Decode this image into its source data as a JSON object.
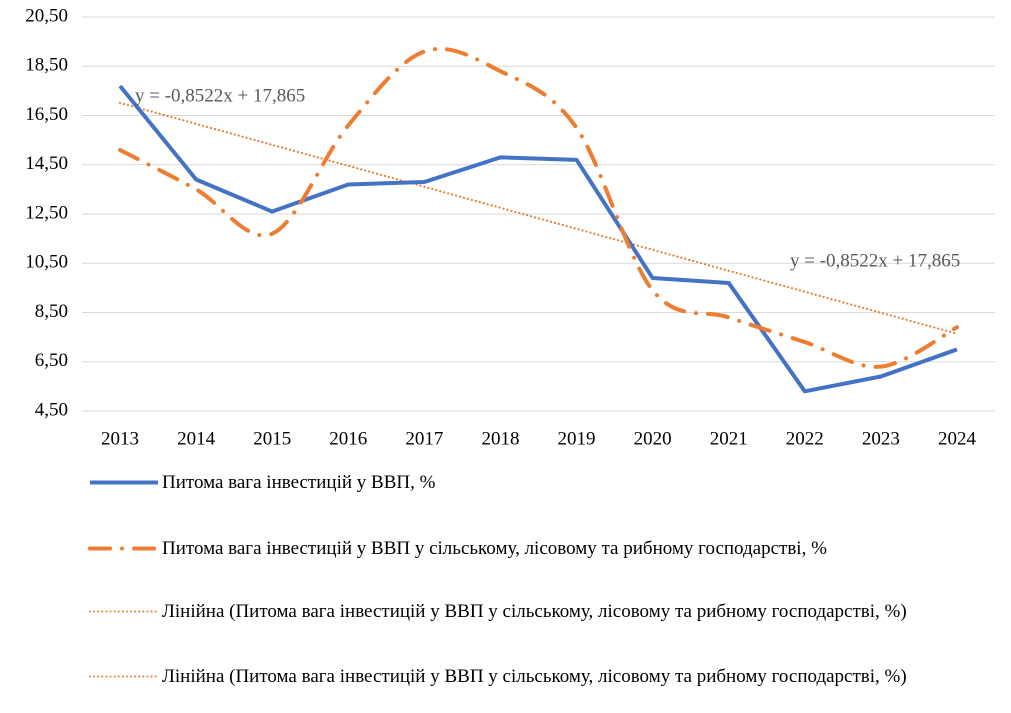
{
  "chart_data": {
    "type": "line",
    "categories": [
      "2013",
      "2014",
      "2015",
      "2016",
      "2017",
      "2018",
      "2019",
      "2020",
      "2021",
      "2022",
      "2023",
      "2024"
    ],
    "series": [
      {
        "name": "Питома вага інвестицій у ВВП, %",
        "color": "#4472c4",
        "style": "solid",
        "values": [
          17.7,
          13.9,
          12.6,
          13.7,
          13.8,
          14.8,
          14.7,
          9.9,
          9.7,
          5.3,
          5.9,
          7.0
        ]
      },
      {
        "name": "Питома вага інвестицій у ВВП у сільському, лісовому та рибному господарстві, %",
        "color": "#ed7d31",
        "style": "dash-dot",
        "smooth": true,
        "values": [
          15.1,
          13.5,
          11.7,
          16.1,
          19.1,
          18.3,
          16.0,
          9.4,
          8.3,
          7.3,
          6.3,
          7.9
        ]
      }
    ],
    "trendlines": [
      {
        "name": "Лінійна (Питома вага інвестицій у ВВП у сільському, лісовому та рибному господарстві, %)",
        "color": "#ed7d31",
        "slope": -0.8522,
        "intercept": 17.865
      },
      {
        "name": "Лінійна (Питома вага інвестицій у ВВП у сільському, лісовому та рибному господарстві, %)",
        "color": "#ed7d31",
        "slope": -0.8522,
        "intercept": 17.865
      }
    ],
    "annotations": [
      "y = -0,8522x + 17,865",
      "y = -0,8522x + 17,865"
    ],
    "ylim": [
      4.5,
      20.5
    ],
    "yticks": [
      {
        "value": 4.5,
        "label": "4,50"
      },
      {
        "value": 6.5,
        "label": "6,50"
      },
      {
        "value": 8.5,
        "label": "8,50"
      },
      {
        "value": 10.5,
        "label": "10,50"
      },
      {
        "value": 12.5,
        "label": "12,50"
      },
      {
        "value": 14.5,
        "label": "14,50"
      },
      {
        "value": 16.5,
        "label": "16,50"
      },
      {
        "value": 18.5,
        "label": "18,50"
      },
      {
        "value": 20.5,
        "label": "20,50"
      }
    ],
    "grid": true,
    "legend": "bottom"
  }
}
